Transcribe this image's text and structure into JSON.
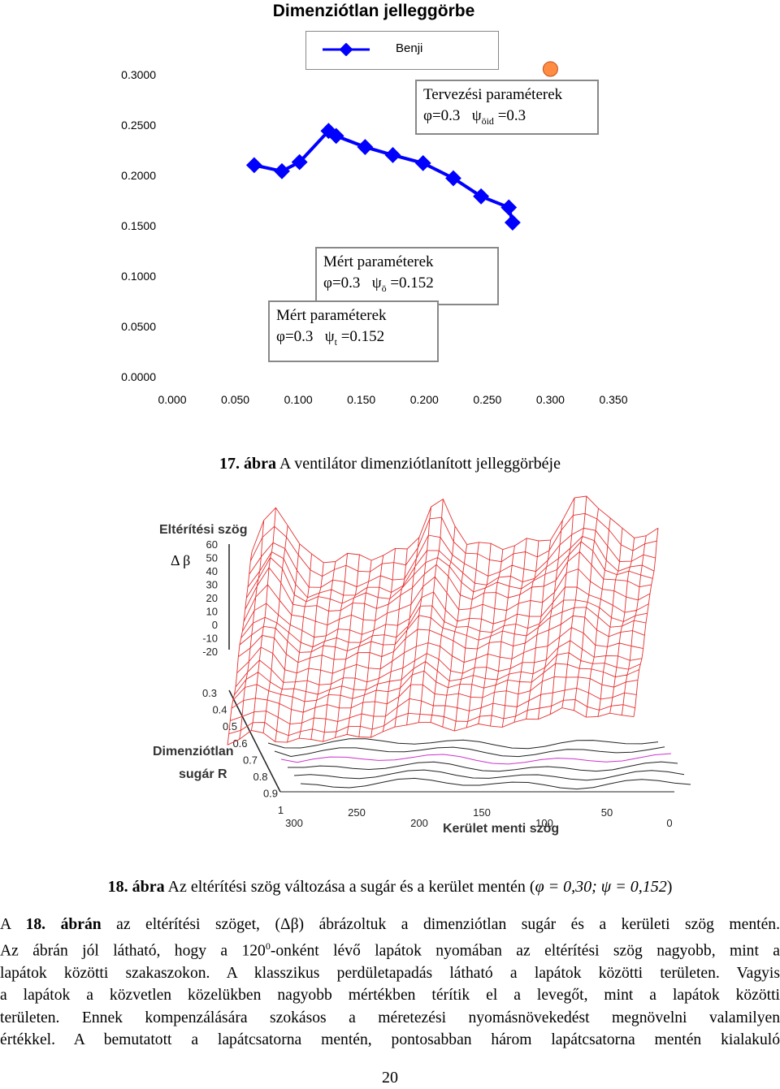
{
  "chart1": {
    "title": "Dimenziótlan jelleggörbe",
    "legend_label": "Benji",
    "y_ticks": [
      "0.3000",
      "0.2500",
      "0.2000",
      "0.1500",
      "0.1000",
      "0.0500",
      "0.0000"
    ],
    "x_ticks": [
      "0.000",
      "0.050",
      "0.100",
      "0.150",
      "0.200",
      "0.250",
      "0.300",
      "0.350"
    ],
    "annotation_design": {
      "line1": "Tervezési paraméterek",
      "phi": "φ=0.3",
      "psi": "ψ",
      "psi_sub": "öid",
      "psi_val": " =0.3"
    },
    "annotation_measured_o": {
      "line1": "Mért paraméterek",
      "phi": "φ=0.3",
      "psi": "ψ",
      "psi_sub": "ö",
      "psi_val": " =0.152"
    },
    "annotation_measured_t": {
      "line1": "Mért paraméterek",
      "phi": "φ=0.3",
      "psi": "ψ",
      "psi_sub": "t",
      "psi_val": " =0.152"
    },
    "colors": {
      "series": "#0000ff",
      "design_point": "#ff8c40",
      "annotation_border": "#888888"
    }
  },
  "chart_data": {
    "type": "line",
    "title": "Dimenziótlan jelleggörbe",
    "xlim": [
      0,
      0.35
    ],
    "ylim": [
      0,
      0.3
    ],
    "series": [
      {
        "name": "Benji",
        "x": [
          0.065,
          0.087,
          0.101,
          0.124,
          0.13,
          0.153,
          0.175,
          0.199,
          0.223,
          0.245,
          0.267,
          0.27
        ],
        "y": [
          0.211,
          0.205,
          0.214,
          0.245,
          0.24,
          0.229,
          0.221,
          0.213,
          0.198,
          0.18,
          0.169,
          0.154
        ]
      }
    ],
    "design_point": {
      "x": 0.3,
      "y": 0.3
    }
  },
  "caption17": {
    "num": "17.",
    "word": "ábra",
    "text": " A ventilátor dimenziótlanított jelleggörbéje"
  },
  "chart2": {
    "z_label": "Eltérítési szög",
    "z_symbol": "Δ β",
    "z_ticks": [
      "60",
      "50",
      "40",
      "30",
      "20",
      "10",
      "0",
      "-10",
      "-20"
    ],
    "r_ticks": [
      "0.3",
      "0.4",
      "0.5",
      "0.6",
      "0.7",
      "0.8",
      "0.9",
      "1"
    ],
    "r_label_line1": "Dimenziótlan",
    "r_label_line2": "sugár  R",
    "theta_ticks": [
      "300",
      "250",
      "200",
      "150",
      "100",
      "50",
      "0"
    ],
    "theta_label": "Kerület menti szög",
    "colors": {
      "mesh": "#e53030",
      "contour": "#222222",
      "contour_accent": "#cc33cc"
    }
  },
  "caption18": {
    "num": "18.",
    "word": "ábra",
    "text": " Az eltérítési szög változása a sugár és a kerület mentén (",
    "math": "φ = 0,30;  ψ = 0,152",
    "close": ")"
  },
  "paragraph": {
    "l1_a": "A ",
    "l1_link": "18. ábrán",
    "l1_b": " az eltérítési szöget, (",
    "l1_sym": "Δβ",
    "l1_c": ") ábrázoltuk a dimenziótlan sugár és a kerületi szög mentén.",
    "l2_a": "Az ábrán jól látható, hogy a 120",
    "l2_sup": "0",
    "l2_b": "-onként lévő lapátok nyomában az eltérítési szög nagyobb, mint a",
    "l3": "lapátok közötti szakaszokon. A klasszikus perdületapadás látható a lapátok közötti területen. Vagyis",
    "l4": "a lapátok a közvetlen közelükben nagyobb mértékben térítik el a levegőt, mint a lapátok közötti",
    "l5": "területen. Ennek kompenzálására szokásos a méretezési nyomásnövekedést megnövelni valamilyen",
    "l6": "értékkel. A bemutatott a lapátcsatorna mentén, pontosabban három lapátcsatorna mentén kialakuló"
  },
  "page_number": "20"
}
